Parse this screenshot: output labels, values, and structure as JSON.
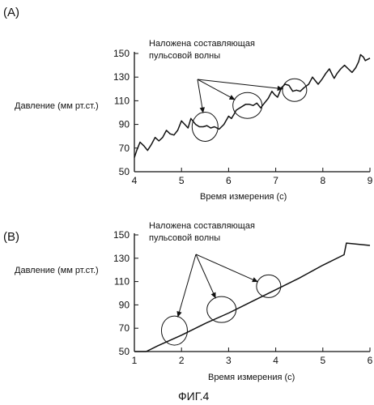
{
  "figure_caption": "ФИГ.4",
  "chart_data": [
    {
      "panel_label": "(A)",
      "type": "line",
      "annotation": [
        "Наложена составляющая",
        "пульсовой волны"
      ],
      "xlabel": "Время измерения (с)",
      "ylabel": "Давление (мм рт.ст.)",
      "xlim": [
        4,
        9
      ],
      "ylim": [
        50,
        150
      ],
      "xticks": [
        4,
        5,
        6,
        7,
        8,
        9
      ],
      "yticks": [
        50,
        70,
        90,
        110,
        130,
        150
      ],
      "highlight_regions": [
        {
          "x": 5.5,
          "y": 88
        },
        {
          "x": 6.4,
          "y": 106
        },
        {
          "x": 7.4,
          "y": 119
        }
      ],
      "series": [
        {
          "values_x": [
            4.0,
            4.05,
            4.12,
            4.2,
            4.28,
            4.36,
            4.44,
            4.52,
            4.6,
            4.68,
            4.76,
            4.84,
            4.92,
            5.0,
            5.07,
            5.14,
            5.2,
            5.26,
            5.3,
            5.38,
            5.46,
            5.54,
            5.62,
            5.7,
            5.8,
            5.9,
            6.0,
            6.06,
            6.12,
            6.16,
            6.2,
            6.28,
            6.36,
            6.44,
            6.52,
            6.6,
            6.68,
            6.76,
            6.84,
            6.92,
            6.98,
            7.04,
            7.08,
            7.12,
            7.2,
            7.28,
            7.36,
            7.44,
            7.52,
            7.6,
            7.7,
            7.78,
            7.84,
            7.9,
            7.98,
            8.06,
            8.14,
            8.2,
            8.24,
            8.3,
            8.38,
            8.46,
            8.54,
            8.62,
            8.7,
            8.76,
            8.8,
            8.86,
            8.9,
            9.0
          ],
          "values_y": [
            62,
            68,
            75,
            72,
            68,
            73,
            79,
            76,
            79,
            85,
            82,
            81,
            85,
            93,
            90,
            87,
            95,
            92,
            90,
            88,
            88,
            89,
            87,
            88,
            86,
            90,
            97,
            95,
            99,
            102,
            103,
            105,
            107,
            107,
            106,
            108,
            104,
            108,
            112,
            118,
            115,
            113,
            117,
            121,
            124,
            123,
            118,
            119,
            118,
            121,
            124,
            130,
            127,
            124,
            128,
            133,
            137,
            132,
            129,
            133,
            137,
            140,
            137,
            134,
            138,
            143,
            149,
            147,
            144,
            146
          ]
        }
      ]
    },
    {
      "panel_label": "(B)",
      "type": "line",
      "annotation": [
        "Наложена составляющая",
        "пульсовой волны"
      ],
      "xlabel": "Время измерения (с)",
      "ylabel": "Давление (мм рт.ст.)",
      "xlim": [
        1,
        6
      ],
      "ylim": [
        50,
        150
      ],
      "xticks": [
        1,
        2,
        3,
        4,
        5,
        6
      ],
      "yticks": [
        50,
        70,
        90,
        110,
        130,
        150
      ],
      "highlight_regions": [
        {
          "x": 1.85,
          "y": 68
        },
        {
          "x": 2.85,
          "y": 86
        },
        {
          "x": 3.85,
          "y": 106
        }
      ],
      "series": [
        {
          "values_x": [
            1.0,
            1.25,
            1.5,
            2.0,
            2.5,
            3.0,
            3.5,
            4.0,
            4.5,
            5.0,
            5.45,
            5.5,
            6.0
          ],
          "values_y": [
            50,
            50,
            55,
            64,
            74,
            83,
            93,
            103,
            113,
            124,
            133,
            143,
            141
          ]
        }
      ]
    }
  ]
}
